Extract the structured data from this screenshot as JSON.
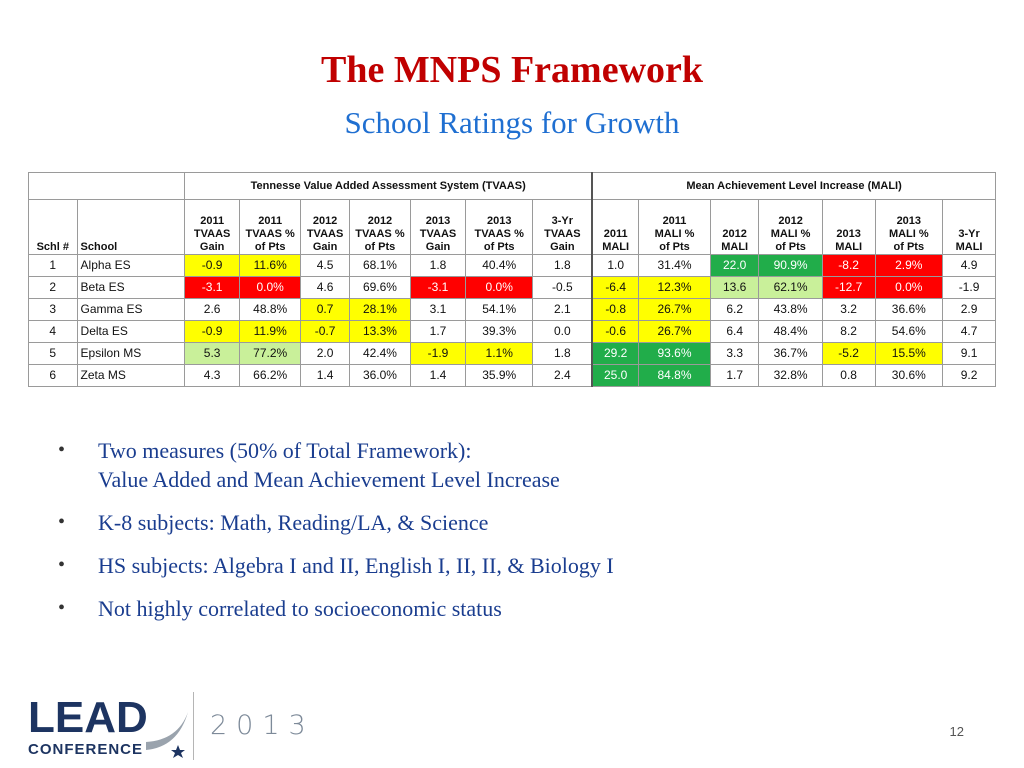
{
  "slide": {
    "title": "The MNPS Framework",
    "subtitle": "School Ratings for Growth",
    "page_number": "12"
  },
  "table": {
    "groups": {
      "tvaas": "Tennesse Value Added Assessment System (TVAAS)",
      "mali": "Mean Achievement Level Increase (MALI)"
    },
    "columns": [
      [
        "Schl #"
      ],
      [
        "School"
      ],
      [
        "2011",
        "TVAAS",
        "Gain"
      ],
      [
        "2011",
        "TVAAS %",
        "of Pts"
      ],
      [
        "2012",
        "TVAAS",
        "Gain"
      ],
      [
        "2012",
        "TVAAS %",
        "of Pts"
      ],
      [
        "2013",
        "TVAAS",
        "Gain"
      ],
      [
        "2013",
        "TVAAS %",
        "of Pts"
      ],
      [
        "3-Yr",
        "TVAAS",
        "Gain"
      ],
      [
        "2011",
        "MALI"
      ],
      [
        "2011",
        "MALI %",
        "of Pts"
      ],
      [
        "2012",
        "MALI"
      ],
      [
        "2012",
        "MALI %",
        "of Pts"
      ],
      [
        "2013",
        "MALI"
      ],
      [
        "2013",
        "MALI %",
        "of Pts"
      ],
      [
        "3-Yr",
        "MALI"
      ]
    ],
    "rows": [
      {
        "cells": [
          "1",
          "Alpha ES",
          "-0.9",
          "11.6%",
          "4.5",
          "68.1%",
          "1.8",
          "40.4%",
          "1.8",
          "1.0",
          "31.4%",
          "22.0",
          "90.9%",
          "-8.2",
          "2.9%",
          "4.9"
        ],
        "colors": [
          "",
          "",
          "yellow",
          "yellow",
          "",
          "",
          "",
          "",
          "",
          "",
          "",
          "green",
          "green",
          "red",
          "red",
          ""
        ]
      },
      {
        "cells": [
          "2",
          "Beta ES",
          "-3.1",
          "0.0%",
          "4.6",
          "69.6%",
          "-3.1",
          "0.0%",
          "-0.5",
          "-6.4",
          "12.3%",
          "13.6",
          "62.1%",
          "-12.7",
          "0.0%",
          "-1.9"
        ],
        "colors": [
          "",
          "",
          "red",
          "red",
          "",
          "",
          "red",
          "red",
          "",
          "yellow",
          "yellow",
          "lgreen",
          "lgreen",
          "red",
          "red",
          ""
        ]
      },
      {
        "cells": [
          "3",
          "Gamma ES",
          "2.6",
          "48.8%",
          "0.7",
          "28.1%",
          "3.1",
          "54.1%",
          "2.1",
          "-0.8",
          "26.7%",
          "6.2",
          "43.8%",
          "3.2",
          "36.6%",
          "2.9"
        ],
        "colors": [
          "",
          "",
          "",
          "",
          "yellow",
          "yellow",
          "",
          "",
          "",
          "yellow",
          "yellow",
          "",
          "",
          "",
          "",
          ""
        ]
      },
      {
        "cells": [
          "4",
          "Delta ES",
          "-0.9",
          "11.9%",
          "-0.7",
          "13.3%",
          "1.7",
          "39.3%",
          "0.0",
          "-0.6",
          "26.7%",
          "6.4",
          "48.4%",
          "8.2",
          "54.6%",
          "4.7"
        ],
        "colors": [
          "",
          "",
          "yellow",
          "yellow",
          "yellow",
          "yellow",
          "",
          "",
          "",
          "yellow",
          "yellow",
          "",
          "",
          "",
          "",
          ""
        ]
      },
      {
        "cells": [
          "5",
          "Epsilon MS",
          "5.3",
          "77.2%",
          "2.0",
          "42.4%",
          "-1.9",
          "1.1%",
          "1.8",
          "29.2",
          "93.6%",
          "3.3",
          "36.7%",
          "-5.2",
          "15.5%",
          "9.1"
        ],
        "colors": [
          "",
          "",
          "lgreen",
          "lgreen",
          "",
          "",
          "yellow",
          "yellow",
          "",
          "green",
          "green",
          "",
          "",
          "yellow",
          "yellow",
          ""
        ]
      },
      {
        "cells": [
          "6",
          "Zeta MS",
          "4.3",
          "66.2%",
          "1.4",
          "36.0%",
          "1.4",
          "35.9%",
          "2.4",
          "25.0",
          "84.8%",
          "1.7",
          "32.8%",
          "0.8",
          "30.6%",
          "9.2"
        ],
        "colors": [
          "",
          "",
          "",
          "",
          "",
          "",
          "",
          "",
          "",
          "green",
          "green",
          "",
          "",
          "",
          "",
          ""
        ]
      }
    ]
  },
  "bullets": [
    {
      "line1": "Two measures (50% of Total Framework):",
      "line2": "Value Added and Mean Achievement Level Increase"
    },
    {
      "line1": "K-8 subjects: Math, Reading/LA, & Science",
      "line2": ""
    },
    {
      "line1": "HS subjects: Algebra I and II, English I, II, II, & Biology I",
      "line2": ""
    },
    {
      "line1": "Not highly correlated to socioeconomic status",
      "line2": ""
    }
  ],
  "footer": {
    "logo_word": "LEAD",
    "logo_sub": "CONFERENCE",
    "year": "2013"
  },
  "colors": {
    "title": "#c00000",
    "subtitle": "#1f6fd1",
    "bullet_text": "#1a3d8f",
    "yellow": "#ffff00",
    "red": "#ff0000",
    "light_green": "#c9f09a",
    "green": "#21ad4a",
    "logo_navy": "#1d3461"
  }
}
